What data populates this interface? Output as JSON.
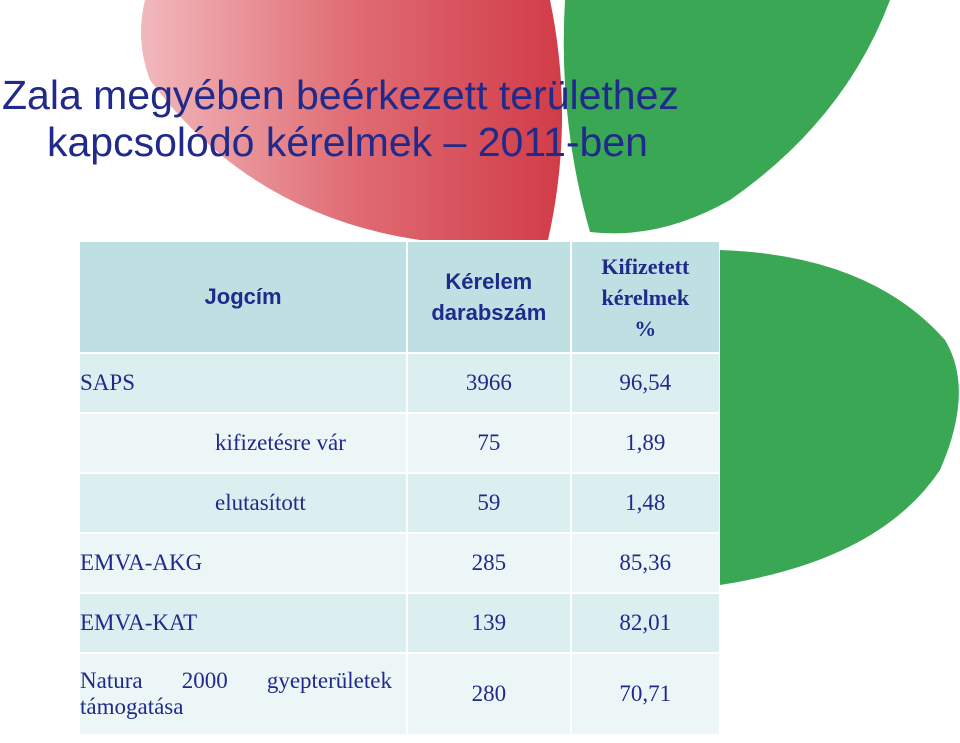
{
  "title": {
    "line1": "Zala megyében beérkezett területhez",
    "line2": "kapcsolódó kérelmek – 2011-ben"
  },
  "colors": {
    "title_text": "#1f2a8a",
    "leaf_red": "#d64550",
    "leaf_green": "#3aa755",
    "header_bg": "#bfe0e3",
    "row_bg_1": "#dbeef0",
    "row_bg_2": "#edf6f7"
  },
  "table": {
    "headers": {
      "jogcim": "Jogcím",
      "darab_1": "Kérelem",
      "darab_2": "darabszám",
      "kif_1": "Kifizetett",
      "kif_2": "kérelmek",
      "kif_3": "%"
    },
    "rows": [
      {
        "label": "SAPS",
        "count": "3966",
        "percent": "96,54"
      },
      {
        "label": "kifizetésre vár",
        "count": "75",
        "percent": "1,89"
      },
      {
        "label": "elutasított",
        "count": "59",
        "percent": "1,48"
      },
      {
        "label": "EMVA-AKG",
        "count": "285",
        "percent": "85,36"
      },
      {
        "label": "EMVA-KAT",
        "count": "139",
        "percent": "82,01"
      },
      {
        "label_w1": "Natura",
        "label_w2": "2000",
        "label_w3": "gyepterületek",
        "label_line2": "támogatása",
        "count": "280",
        "percent": "70,71"
      }
    ]
  }
}
